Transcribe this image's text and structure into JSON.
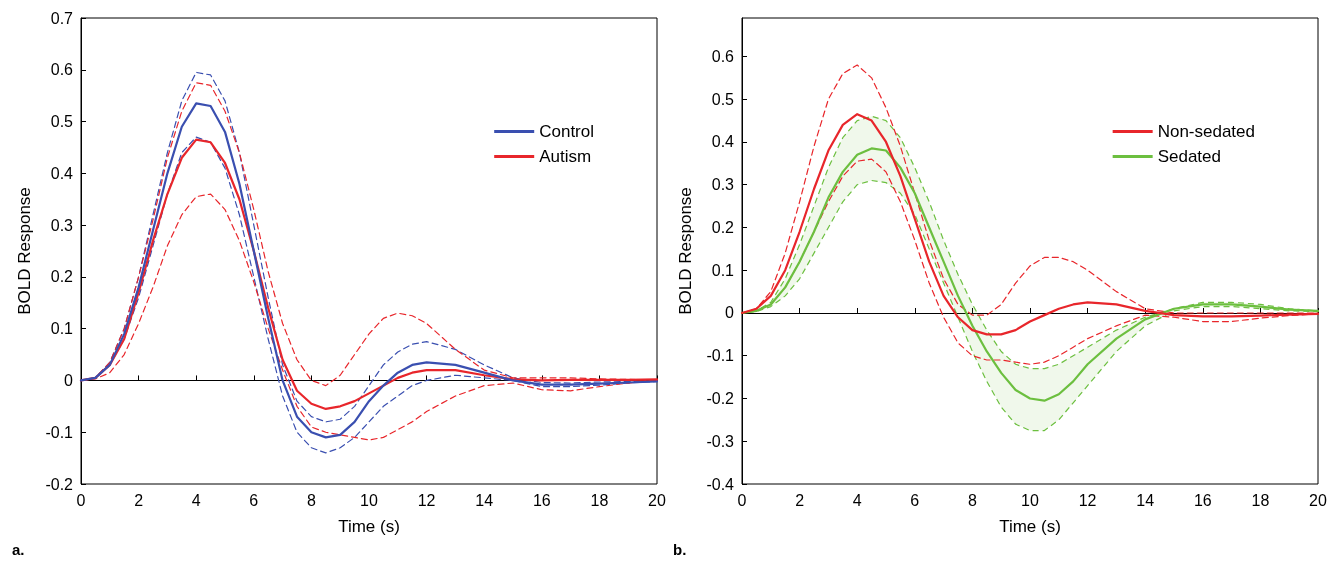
{
  "chart_data": [
    {
      "type": "line",
      "xlabel": "Time (s)",
      "ylabel": "BOLD Response",
      "annotations": [
        "a."
      ],
      "legend": "top right",
      "marker": "none",
      "x": [
        0,
        0.5,
        1,
        1.5,
        2,
        2.5,
        3,
        3.5,
        4,
        4.5,
        5,
        5.5,
        6,
        6.5,
        7,
        7.5,
        8,
        8.5,
        9,
        9.5,
        10,
        10.5,
        11,
        11.5,
        12,
        13,
        14,
        15,
        16,
        17,
        18,
        19,
        20
      ],
      "xlim": [
        0,
        20
      ],
      "xticks": [
        0,
        2,
        4,
        6,
        8,
        10,
        12,
        14,
        16,
        18,
        20
      ],
      "ylim": [
        -0.2,
        0.7
      ],
      "yticks": [
        -0.2,
        -0.1,
        0,
        0.1,
        0.2,
        0.3,
        0.4,
        0.5,
        0.6,
        0.7
      ],
      "series": [
        {
          "name": "Control",
          "color": "#3a4fb0",
          "line_style": "solid",
          "values": [
            0,
            0.005,
            0.03,
            0.09,
            0.18,
            0.29,
            0.4,
            0.49,
            0.535,
            0.53,
            0.48,
            0.38,
            0.25,
            0.12,
            0,
            -0.07,
            -0.1,
            -0.11,
            -0.105,
            -0.08,
            -0.04,
            -0.01,
            0.015,
            0.03,
            0.035,
            0.03,
            0.015,
            0,
            -0.008,
            -0.008,
            -0.006,
            -0.004,
            -0.002
          ]
        },
        {
          "color": "#3a4fb0",
          "line_style": "dashed",
          "values": [
            0,
            0.005,
            0.03,
            0.08,
            0.16,
            0.26,
            0.36,
            0.44,
            0.47,
            0.46,
            0.41,
            0.32,
            0.2,
            0.08,
            -0.03,
            -0.1,
            -0.13,
            -0.14,
            -0.13,
            -0.11,
            -0.08,
            -0.05,
            -0.03,
            -0.01,
            0,
            0.01,
            0.005,
            0,
            -0.012,
            -0.012,
            -0.009,
            -0.005,
            -0.002
          ]
        },
        {
          "color": "#3a4fb0",
          "line_style": "dashed",
          "values": [
            0,
            0.005,
            0.035,
            0.1,
            0.2,
            0.32,
            0.44,
            0.54,
            0.595,
            0.59,
            0.54,
            0.44,
            0.3,
            0.16,
            0.03,
            -0.04,
            -0.07,
            -0.08,
            -0.075,
            -0.05,
            -0.01,
            0.03,
            0.055,
            0.07,
            0.075,
            0.06,
            0.03,
            0.005,
            -0.004,
            -0.005,
            -0.003,
            -0.002,
            -0.001
          ]
        },
        {
          "name": "Autism",
          "color": "#e8262b",
          "line_style": "solid",
          "values": [
            0,
            0.005,
            0.03,
            0.08,
            0.17,
            0.27,
            0.36,
            0.43,
            0.465,
            0.46,
            0.42,
            0.35,
            0.25,
            0.14,
            0.04,
            -0.02,
            -0.045,
            -0.055,
            -0.05,
            -0.04,
            -0.025,
            -0.01,
            0.005,
            0.015,
            0.02,
            0.02,
            0.01,
            0.002,
            0,
            0.001,
            0.001,
            0.001,
            0.002
          ]
        },
        {
          "color": "#e8262b",
          "line_style": "dashed",
          "values": [
            0,
            0.003,
            0.015,
            0.05,
            0.11,
            0.18,
            0.26,
            0.32,
            0.355,
            0.36,
            0.33,
            0.27,
            0.19,
            0.1,
            0.02,
            -0.05,
            -0.09,
            -0.1,
            -0.105,
            -0.11,
            -0.115,
            -0.11,
            -0.095,
            -0.08,
            -0.06,
            -0.03,
            -0.01,
            -0.005,
            -0.018,
            -0.02,
            -0.012,
            -0.005,
            0
          ]
        },
        {
          "color": "#e8262b",
          "line_style": "dashed",
          "values": [
            0,
            0.005,
            0.035,
            0.1,
            0.2,
            0.31,
            0.43,
            0.52,
            0.575,
            0.57,
            0.52,
            0.44,
            0.33,
            0.21,
            0.11,
            0.04,
            0,
            -0.01,
            0.01,
            0.05,
            0.09,
            0.12,
            0.13,
            0.125,
            0.11,
            0.06,
            0.02,
            0.005,
            0.005,
            0.005,
            0.003,
            0.002,
            0
          ]
        }
      ]
    },
    {
      "type": "line",
      "xlabel": "Time (s)",
      "ylabel": "BOLD Response",
      "annotations": [
        "b."
      ],
      "legend": "top right",
      "marker": "none",
      "x": [
        0,
        0.5,
        1,
        1.5,
        2,
        2.5,
        3,
        3.5,
        4,
        4.5,
        5,
        5.5,
        6,
        6.5,
        7,
        7.5,
        8,
        8.5,
        9,
        9.5,
        10,
        10.5,
        11,
        11.5,
        12,
        13,
        14,
        15,
        16,
        17,
        18,
        19,
        20
      ],
      "xlim": [
        0,
        20
      ],
      "xticks": [
        0,
        2,
        4,
        6,
        8,
        10,
        12,
        14,
        16,
        18,
        20
      ],
      "ylim": [
        -0.4,
        0.69
      ],
      "yticks": [
        -0.4,
        -0.3,
        -0.2,
        -0.1,
        0,
        0.1,
        0.2,
        0.3,
        0.4,
        0.5,
        0.6
      ],
      "series": [
        {
          "name": "Non-sedated",
          "color": "#e8262b",
          "line_style": "solid",
          "values": [
            0,
            0.01,
            0.04,
            0.1,
            0.19,
            0.29,
            0.38,
            0.44,
            0.465,
            0.45,
            0.4,
            0.32,
            0.22,
            0.12,
            0.04,
            -0.01,
            -0.04,
            -0.05,
            -0.05,
            -0.04,
            -0.02,
            -0.005,
            0.01,
            0.02,
            0.025,
            0.02,
            0.005,
            -0.005,
            -0.008,
            -0.008,
            -0.006,
            -0.004,
            -0.002
          ]
        },
        {
          "color": "#e8262b",
          "line_style": "dashed",
          "values": [
            0,
            0.005,
            0.02,
            0.06,
            0.12,
            0.19,
            0.26,
            0.32,
            0.355,
            0.36,
            0.33,
            0.26,
            0.17,
            0.07,
            -0.01,
            -0.07,
            -0.1,
            -0.11,
            -0.11,
            -0.115,
            -0.12,
            -0.115,
            -0.1,
            -0.08,
            -0.06,
            -0.03,
            -0.005,
            -0.01,
            -0.02,
            -0.02,
            -0.012,
            -0.006,
            -0.002
          ]
        },
        {
          "color": "#e8262b",
          "line_style": "dashed",
          "values": [
            0,
            0.01,
            0.05,
            0.14,
            0.26,
            0.39,
            0.5,
            0.56,
            0.58,
            0.55,
            0.48,
            0.39,
            0.28,
            0.17,
            0.08,
            0.02,
            -0.005,
            -0.005,
            0.02,
            0.07,
            0.11,
            0.13,
            0.13,
            0.12,
            0.1,
            0.05,
            0.01,
            0,
            0,
            0,
            0,
            0,
            0
          ]
        },
        {
          "name": "Sedated",
          "color": "#6cbf3f",
          "line_style": "solid",
          "values": [
            0,
            0.005,
            0.02,
            0.06,
            0.12,
            0.19,
            0.27,
            0.33,
            0.37,
            0.385,
            0.38,
            0.34,
            0.28,
            0.2,
            0.12,
            0.04,
            -0.03,
            -0.09,
            -0.14,
            -0.18,
            -0.2,
            -0.205,
            -0.19,
            -0.16,
            -0.12,
            -0.06,
            -0.015,
            0.01,
            0.02,
            0.02,
            0.015,
            0.008,
            0.005
          ],
          "lower": [
            0,
            0.003,
            0.015,
            0.04,
            0.08,
            0.14,
            0.2,
            0.26,
            0.3,
            0.31,
            0.305,
            0.28,
            0.23,
            0.15,
            0.07,
            -0.01,
            -0.09,
            -0.16,
            -0.22,
            -0.26,
            -0.275,
            -0.275,
            -0.25,
            -0.21,
            -0.17,
            -0.09,
            -0.03,
            0.005,
            0.015,
            0.015,
            0.01,
            0.005,
            0.003
          ],
          "upper": [
            0,
            0.005,
            0.025,
            0.08,
            0.16,
            0.25,
            0.34,
            0.41,
            0.45,
            0.46,
            0.45,
            0.41,
            0.34,
            0.26,
            0.17,
            0.09,
            0.02,
            -0.04,
            -0.09,
            -0.12,
            -0.13,
            -0.13,
            -0.12,
            -0.1,
            -0.08,
            -0.04,
            -0.01,
            0.01,
            0.025,
            0.025,
            0.02,
            0.01,
            0.005
          ]
        }
      ]
    }
  ]
}
